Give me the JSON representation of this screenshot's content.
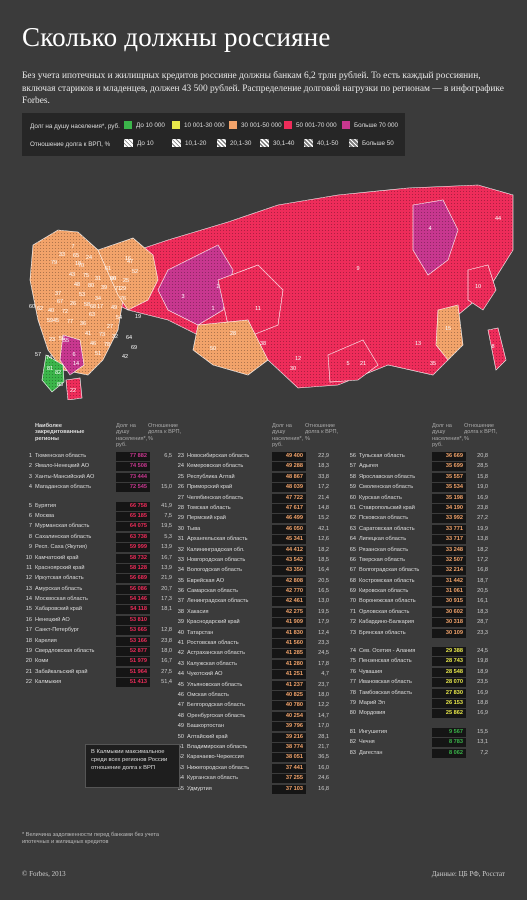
{
  "header": {
    "title": "Сколько должны россияне",
    "lead": "Без учета ипотечных и жилищных кредитов россияне должны банкам 6,2 трлн рублей. То есть каждый россиянин, включая стариков и младенцев, должен 43 500 рублей. Распределение долговой нагрузки по регионам — в инфографике Forbes."
  },
  "legend": {
    "color_title": "Долг на душу населения*, руб.",
    "color_items": [
      {
        "label": "До 10 000",
        "color": "#3bb54a"
      },
      {
        "label": "10 001-30 000",
        "color": "#e8e84a"
      },
      {
        "label": "30 001-50 000",
        "color": "#f2a36a"
      },
      {
        "label": "50 001-70 000",
        "color": "#ee2c5a"
      },
      {
        "label": "Больше 70 000",
        "color": "#c8378f"
      }
    ],
    "hatch_title": "Отношение долга к ВРП, %",
    "hatch_items": [
      {
        "label": "До 10"
      },
      {
        "label": "10,1-20"
      },
      {
        "label": "20,1-30"
      },
      {
        "label": "30,1-40"
      },
      {
        "label": "40,1-50"
      },
      {
        "label": "Больше 50"
      }
    ]
  },
  "table_headers": {
    "region": "Наиболее закредитованные регионы",
    "debt": "Долг на душу населения*, руб.",
    "ratio": "Отношение долга к ВРП, %"
  },
  "map_labels": [
    "1",
    "2",
    "3",
    "4",
    "5",
    "6",
    "7",
    "8",
    "9",
    "10",
    "11",
    "12",
    "13",
    "14",
    "15",
    "16",
    "17",
    "18",
    "19",
    "20",
    "21",
    "22",
    "23",
    "24",
    "25",
    "26",
    "27",
    "28",
    "29",
    "30",
    "31",
    "32",
    "33",
    "34",
    "35",
    "36",
    "37",
    "38",
    "39",
    "40",
    "41",
    "42",
    "43",
    "44",
    "45",
    "46",
    "47",
    "48",
    "49",
    "50",
    "51",
    "52",
    "53",
    "54",
    "55",
    "56",
    "57",
    "58",
    "59",
    "60",
    "61",
    "62",
    "63",
    "64",
    "65",
    "66",
    "67",
    "68",
    "69",
    "70",
    "71",
    "72",
    "73",
    "74",
    "75",
    "76",
    "77",
    "78",
    "79",
    "80",
    "81",
    "82",
    "83"
  ],
  "chart_data": {
    "type": "table",
    "columns": [
      "rank",
      "region",
      "debt_per_capita_rub",
      "debt_to_grp_pct"
    ],
    "rows": [
      [
        1,
        "Тюменская область",
        "77 882",
        "6,5"
      ],
      [
        2,
        "Ямало-Ненецкий АО",
        "74 508",
        ""
      ],
      [
        3,
        "Ханты-Мансийский АО",
        "73 444",
        ""
      ],
      [
        4,
        "Магаданская область",
        "72 545",
        "15,0"
      ],
      [
        5,
        "Бурятия",
        "66 758",
        "41,9"
      ],
      [
        6,
        "Москва",
        "65 185",
        "7,5"
      ],
      [
        7,
        "Мурманская область",
        "64 075",
        "19,5"
      ],
      [
        8,
        "Сахалинская область",
        "63 738",
        "5,3"
      ],
      [
        9,
        "Респ. Саха (Якутия)",
        "59 999",
        "13,9"
      ],
      [
        10,
        "Камчатский край",
        "58 732",
        "16,7"
      ],
      [
        11,
        "Красноярский край",
        "58 128",
        "13,9"
      ],
      [
        12,
        "Иркутская область",
        "56 689",
        "21,9"
      ],
      [
        13,
        "Амурская область",
        "56 086",
        "20,7"
      ],
      [
        14,
        "Москвоская область",
        "54 146",
        "17,3"
      ],
      [
        15,
        "Хабаровский край",
        "54 118",
        "18,1"
      ],
      [
        16,
        "Ненецкий АО",
        "53 810",
        ""
      ],
      [
        17,
        "Санкт-Петербург",
        "53 665",
        "12,8"
      ],
      [
        18,
        "Карелия",
        "53 166",
        "23,8"
      ],
      [
        19,
        "Свердловская область",
        "52 877",
        "18,0"
      ],
      [
        20,
        "Коми",
        "51 979",
        "16,7"
      ],
      [
        21,
        "Забайкальский край",
        "51 964",
        "27,5"
      ],
      [
        22,
        "Калмыкия",
        "51 413",
        "51,4"
      ],
      [
        23,
        "Новосибирская область",
        "49 400",
        "22,9"
      ],
      [
        24,
        "Кемеровская область",
        "49 288",
        "18,3"
      ],
      [
        25,
        "Республика Алтай",
        "48 867",
        "33,8"
      ],
      [
        26,
        "Приморский край",
        "48 039",
        "17,2"
      ],
      [
        27,
        "Челябинская область",
        "47 722",
        "21,4"
      ],
      [
        28,
        "Томская область",
        "47 617",
        "14,8"
      ],
      [
        29,
        "Пермский край",
        "46 499",
        "15,2"
      ],
      [
        30,
        "Тыва",
        "46 050",
        "42,1"
      ],
      [
        31,
        "Архангельская область",
        "45 341",
        "12,6"
      ],
      [
        32,
        "Калининградская обл.",
        "44 412",
        "18,2"
      ],
      [
        33,
        "Новгородская область",
        "43 542",
        "18,5"
      ],
      [
        34,
        "Вологодская область",
        "43 350",
        "16,4"
      ],
      [
        35,
        "Еврейская АО",
        "42 808",
        "20,5"
      ],
      [
        36,
        "Самарская область",
        "42 770",
        "16,5"
      ],
      [
        37,
        "Ленинградская область",
        "42 461",
        "13,0"
      ],
      [
        38,
        "Хакасия",
        "42 275",
        "19,5"
      ],
      [
        39,
        "Краснодарский край",
        "41 909",
        "17,9"
      ],
      [
        40,
        "Татарстан",
        "41 830",
        "12,4"
      ],
      [
        41,
        "Ростовская область",
        "41 560",
        "23,3"
      ],
      [
        42,
        "Астраханская область",
        "41 285",
        "24,5"
      ],
      [
        43,
        "Калужская область",
        "41 280",
        "17,8"
      ],
      [
        44,
        "Чукотский АО",
        "41 251",
        "4,7"
      ],
      [
        45,
        "Ульяновская область",
        "41 237",
        "23,7"
      ],
      [
        46,
        "Омская область",
        "40 825",
        "18,0"
      ],
      [
        47,
        "Белгородская область",
        "40 780",
        "12,2"
      ],
      [
        48,
        "Оренбургская область",
        "40 254",
        "14,7"
      ],
      [
        49,
        "Башкортостан",
        "39 796",
        "17,0"
      ],
      [
        50,
        "Алтайский край",
        "39 216",
        "28,1"
      ],
      [
        51,
        "Владимирская область",
        "38 774",
        "21,7"
      ],
      [
        52,
        "Карачаево-Черкессия",
        "38 051",
        "36,5"
      ],
      [
        53,
        "Нижегородская область",
        "37 441",
        "16,0"
      ],
      [
        54,
        "Курганская область",
        "37 255",
        "24,6"
      ],
      [
        55,
        "Удмуртия",
        "37 103",
        "16,8"
      ],
      [
        56,
        "Тульская область",
        "36 669",
        "20,8"
      ],
      [
        57,
        "Адыгея",
        "35 699",
        "28,5"
      ],
      [
        58,
        "Ярославская область",
        "35 557",
        "15,8"
      ],
      [
        59,
        "Смоленская область",
        "35 534",
        "19,0"
      ],
      [
        60,
        "Курская область",
        "35 198",
        "16,9"
      ],
      [
        61,
        "Ставропольский край",
        "34 190",
        "23,8"
      ],
      [
        62,
        "Псковская область",
        "33 992",
        "27,2"
      ],
      [
        63,
        "Саратовская область",
        "33 771",
        "19,9"
      ],
      [
        64,
        "Липецкая область",
        "33 717",
        "13,8"
      ],
      [
        65,
        "Рязанская область",
        "33 248",
        "18,2"
      ],
      [
        66,
        "Тверская область",
        "32 507",
        "17,2"
      ],
      [
        67,
        "Волгоградская область",
        "32 214",
        "16,8"
      ],
      [
        68,
        "Костромская область",
        "31 442",
        "18,7"
      ],
      [
        69,
        "Кировская область",
        "31 061",
        "20,5"
      ],
      [
        70,
        "Воронежская область",
        "30 915",
        "16,1"
      ],
      [
        71,
        "Орловская область",
        "30 602",
        "18,3"
      ],
      [
        72,
        "Кабардино-Балкария",
        "30 318",
        "28,7"
      ],
      [
        73,
        "Брянская область",
        "30 109",
        "23,3"
      ],
      [
        74,
        "Сев. Осетия - Алания",
        "29 388",
        "24,5"
      ],
      [
        75,
        "Пензенская область",
        "28 743",
        "19,8"
      ],
      [
        76,
        "Чувашия",
        "28 548",
        "18,9"
      ],
      [
        77,
        "Ивановская область",
        "28 070",
        "23,5"
      ],
      [
        78,
        "Тамбовская область",
        "27 830",
        "16,9"
      ],
      [
        79,
        "Марий Эл",
        "26 153",
        "18,8"
      ],
      [
        80,
        "Мордовия",
        "25 862",
        "16,9"
      ],
      [
        81,
        "Ингушетия",
        "9 567",
        "15,5"
      ],
      [
        82,
        "Чечня",
        "8 783",
        "13,1"
      ],
      [
        83,
        "Дагестан",
        "8 062",
        "7,2"
      ]
    ]
  },
  "callout": "В Калмыкии максимальное среди всех регионов России отношение долга к ВРП",
  "footnote": "* Величина задолженности перед банками без учета ипотечных и жилищных кредитов",
  "copyright": "© Forbes, 2013",
  "source": "Данные: ЦБ РФ, Росстат"
}
